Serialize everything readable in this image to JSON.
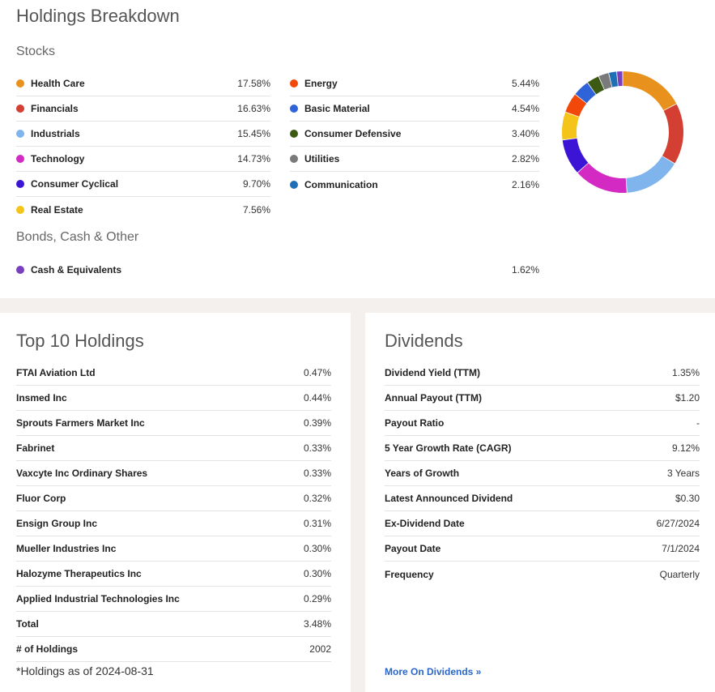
{
  "breakdown": {
    "title": "Holdings Breakdown",
    "stocks_label": "Stocks",
    "bonds_label": "Bonds, Cash & Other",
    "stocks_left": [
      {
        "label": "Health Care",
        "value": "17.58%",
        "color": "#e8911d"
      },
      {
        "label": "Financials",
        "value": "16.63%",
        "color": "#d33f32"
      },
      {
        "label": "Industrials",
        "value": "15.45%",
        "color": "#7fb4ec"
      },
      {
        "label": "Technology",
        "value": "14.73%",
        "color": "#d22ac2"
      },
      {
        "label": "Consumer Cyclical",
        "value": "9.70%",
        "color": "#3c14d6"
      },
      {
        "label": "Real Estate",
        "value": "7.56%",
        "color": "#f5c418"
      }
    ],
    "stocks_right": [
      {
        "label": "Energy",
        "value": "5.44%",
        "color": "#f2480a"
      },
      {
        "label": "Basic Material",
        "value": "4.54%",
        "color": "#2f63d8"
      },
      {
        "label": "Consumer Defensive",
        "value": "3.40%",
        "color": "#3d5a14"
      },
      {
        "label": "Utilities",
        "value": "2.82%",
        "color": "#7a7a7a"
      },
      {
        "label": "Communication",
        "value": "2.16%",
        "color": "#1f6fb5"
      }
    ],
    "other": [
      {
        "label": "Cash & Equivalents",
        "value": "1.62%",
        "color": "#7a3fc0"
      }
    ]
  },
  "chart_data": {
    "type": "pie",
    "donut": true,
    "categories": [
      "Health Care",
      "Financials",
      "Industrials",
      "Technology",
      "Consumer Cyclical",
      "Real Estate",
      "Energy",
      "Basic Material",
      "Consumer Defensive",
      "Utilities",
      "Communication",
      "Cash & Equivalents"
    ],
    "values": [
      17.58,
      16.63,
      15.45,
      14.73,
      9.7,
      7.56,
      5.44,
      4.54,
      3.4,
      2.82,
      2.16,
      1.62
    ],
    "colors": [
      "#e8911d",
      "#d33f32",
      "#7fb4ec",
      "#d22ac2",
      "#3c14d6",
      "#f5c418",
      "#f2480a",
      "#2f63d8",
      "#3d5a14",
      "#7a7a7a",
      "#1f6fb5",
      "#7a3fc0"
    ]
  },
  "top10": {
    "title": "Top 10 Holdings",
    "rows": [
      {
        "label": "FTAI Aviation Ltd",
        "value": "0.47%"
      },
      {
        "label": "Insmed Inc",
        "value": "0.44%"
      },
      {
        "label": "Sprouts Farmers Market Inc",
        "value": "0.39%"
      },
      {
        "label": "Fabrinet",
        "value": "0.33%"
      },
      {
        "label": "Vaxcyte Inc Ordinary Shares",
        "value": "0.33%"
      },
      {
        "label": "Fluor Corp",
        "value": "0.32%"
      },
      {
        "label": "Ensign Group Inc",
        "value": "0.31%"
      },
      {
        "label": "Mueller Industries Inc",
        "value": "0.30%"
      },
      {
        "label": "Halozyme Therapeutics Inc",
        "value": "0.30%"
      },
      {
        "label": "Applied Industrial Technologies Inc",
        "value": "0.29%"
      },
      {
        "label": "Total",
        "value": "3.48%"
      },
      {
        "label": "# of Holdings",
        "value": "2002"
      }
    ],
    "note": "*Holdings as of 2024-08-31"
  },
  "dividends": {
    "title": "Dividends",
    "rows": [
      {
        "label": "Dividend Yield (TTM)",
        "value": "1.35%"
      },
      {
        "label": "Annual Payout (TTM)",
        "value": "$1.20"
      },
      {
        "label": "Payout Ratio",
        "value": "-"
      },
      {
        "label": "5 Year Growth Rate (CAGR)",
        "value": "9.12%"
      },
      {
        "label": "Years of Growth",
        "value": "3 Years"
      },
      {
        "label": "Latest Announced Dividend",
        "value": "$0.30"
      },
      {
        "label": "Ex-Dividend Date",
        "value": "6/27/2024"
      },
      {
        "label": "Payout Date",
        "value": "7/1/2024"
      },
      {
        "label": "Frequency",
        "value": "Quarterly"
      }
    ],
    "more_link": "More On Dividends »"
  }
}
